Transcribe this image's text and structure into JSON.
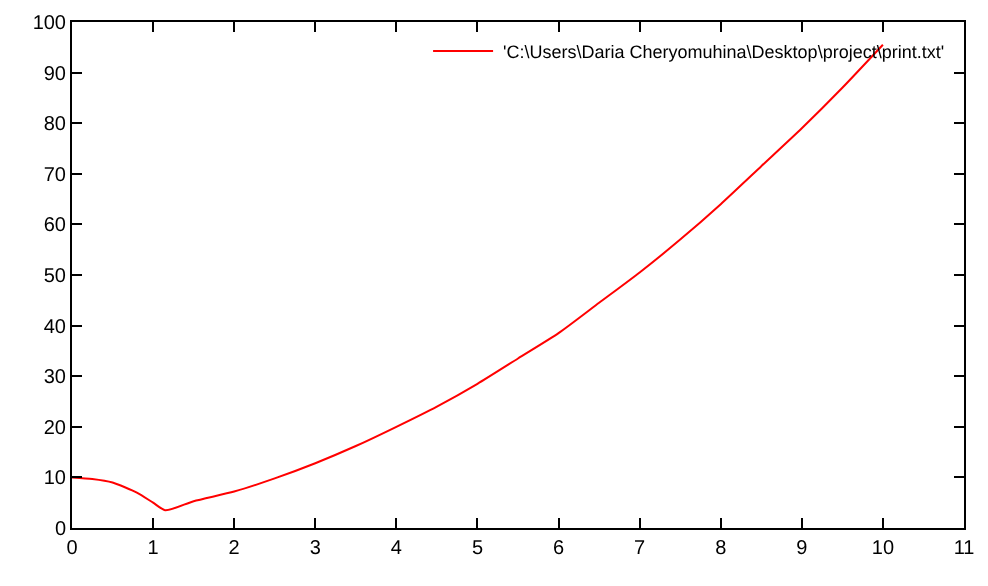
{
  "chart_data": {
    "type": "line",
    "x": [
      0,
      0.25,
      0.5,
      0.8,
      1,
      1.15,
      1.5,
      2,
      2.5,
      3,
      3.5,
      4,
      4.5,
      5,
      5.5,
      6,
      6.5,
      7,
      7.5,
      8,
      8.5,
      9,
      9.5,
      10
    ],
    "series": [
      {
        "name": "'C:\\Users\\Daria Cheryomuhina\\Desktop\\project\\print.txt'",
        "color": "#ff0000",
        "values": [
          10,
          9.7,
          9,
          7,
          5,
          3.5,
          5.3,
          7.2,
          9.8,
          12.8,
          16.2,
          20,
          24,
          28.5,
          33.5,
          38.5,
          44.5,
          50.5,
          57,
          64,
          71.5,
          79,
          87,
          95.5
        ]
      }
    ],
    "xlim": [
      0,
      11
    ],
    "xticks": [
      0,
      1,
      2,
      3,
      4,
      5,
      6,
      7,
      8,
      9,
      10,
      11
    ],
    "ylim": [
      0,
      100
    ],
    "yticks": [
      0,
      10,
      20,
      30,
      40,
      50,
      60,
      70,
      80,
      90,
      100
    ],
    "legend": "top right",
    "marker": "none",
    "line_style": "solid"
  }
}
